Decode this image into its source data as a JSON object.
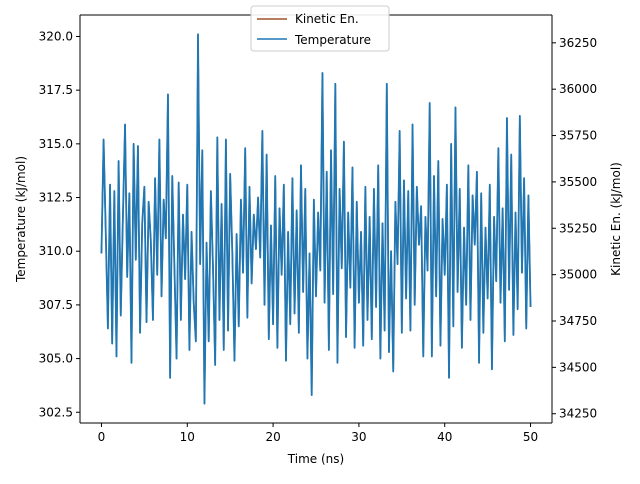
{
  "chart_data": {
    "type": "line",
    "xlabel": "Time (ns)",
    "ylabel_left": "Temperature (kJ/mol)",
    "ylabel_right": "Kinetic En. (kJ/mol)",
    "xlim": [
      -2.5,
      52.5
    ],
    "ylim_left": [
      302.0,
      321.0
    ],
    "ylim_right": [
      34200,
      36400
    ],
    "x_ticks": [
      0,
      10,
      20,
      30,
      40,
      50
    ],
    "y_ticks_left": [
      302.5,
      305.0,
      307.5,
      310.0,
      312.5,
      315.0,
      317.5,
      320.0
    ],
    "y_ticks_right": [
      34250,
      34500,
      34750,
      35000,
      35250,
      35500,
      35750,
      36000,
      36250
    ],
    "grid": false,
    "legend": {
      "location": "top-center",
      "entries": [
        "Kinetic En.",
        "Temperature"
      ]
    },
    "series": [
      {
        "name": "Kinetic En.",
        "axis": "right",
        "color": "#a0522d",
        "note_visible": "hidden beneath Temperature line"
      },
      {
        "name": "Temperature",
        "axis": "left",
        "color": "#1f77b4",
        "x": [
          0.0,
          0.25,
          0.5,
          0.75,
          1.0,
          1.25,
          1.5,
          1.75,
          2.0,
          2.25,
          2.5,
          2.75,
          3.0,
          3.25,
          3.5,
          3.75,
          4.0,
          4.25,
          4.5,
          4.75,
          5.0,
          5.25,
          5.5,
          5.75,
          6.0,
          6.25,
          6.5,
          6.75,
          7.0,
          7.25,
          7.5,
          7.75,
          8.0,
          8.25,
          8.5,
          8.75,
          9.0,
          9.25,
          9.5,
          9.75,
          10.0,
          10.25,
          10.5,
          10.75,
          11.0,
          11.25,
          11.5,
          11.75,
          12.0,
          12.25,
          12.5,
          12.75,
          13.0,
          13.25,
          13.5,
          13.75,
          14.0,
          14.25,
          14.5,
          14.75,
          15.0,
          15.25,
          15.5,
          15.75,
          16.0,
          16.25,
          16.5,
          16.75,
          17.0,
          17.25,
          17.5,
          17.75,
          18.0,
          18.25,
          18.5,
          18.75,
          19.0,
          19.25,
          19.5,
          19.75,
          20.0,
          20.25,
          20.5,
          20.75,
          21.0,
          21.25,
          21.5,
          21.75,
          22.0,
          22.25,
          22.5,
          22.75,
          23.0,
          23.25,
          23.5,
          23.75,
          24.0,
          24.25,
          24.5,
          24.75,
          25.0,
          25.25,
          25.5,
          25.75,
          26.0,
          26.25,
          26.5,
          26.75,
          27.0,
          27.25,
          27.5,
          27.75,
          28.0,
          28.25,
          28.5,
          28.75,
          29.0,
          29.25,
          29.5,
          29.75,
          30.0,
          30.25,
          30.5,
          30.75,
          31.0,
          31.25,
          31.5,
          31.75,
          32.0,
          32.25,
          32.5,
          32.75,
          33.0,
          33.25,
          33.5,
          33.75,
          34.0,
          34.25,
          34.5,
          34.75,
          35.0,
          35.25,
          35.5,
          35.75,
          36.0,
          36.25,
          36.5,
          36.75,
          37.0,
          37.25,
          37.5,
          37.75,
          38.0,
          38.25,
          38.5,
          38.75,
          39.0,
          39.25,
          39.5,
          39.75,
          40.0,
          40.25,
          40.5,
          40.75,
          41.0,
          41.25,
          41.5,
          41.75,
          42.0,
          42.25,
          42.5,
          42.75,
          43.0,
          43.25,
          43.5,
          43.75,
          44.0,
          44.25,
          44.5,
          44.75,
          45.0,
          45.25,
          45.5,
          45.75,
          46.0,
          46.25,
          46.5,
          46.75,
          47.0,
          47.25,
          47.5,
          47.75,
          48.0,
          48.25,
          48.5,
          48.75,
          49.0,
          49.25,
          49.5,
          49.75,
          50.0
        ],
        "values": [
          309.9,
          315.2,
          310.9,
          306.4,
          313.1,
          305.7,
          312.8,
          305.1,
          314.2,
          307.0,
          311.6,
          315.9,
          308.8,
          312.7,
          304.8,
          315.0,
          309.6,
          314.9,
          306.2,
          311.3,
          313.0,
          306.7,
          312.3,
          310.5,
          306.8,
          313.4,
          308.9,
          315.2,
          307.9,
          312.4,
          310.6,
          317.3,
          304.1,
          313.5,
          309.3,
          305.0,
          313.2,
          306.8,
          311.7,
          308.7,
          313.1,
          305.4,
          310.9,
          307.6,
          305.8,
          320.1,
          309.4,
          314.7,
          302.9,
          310.4,
          305.8,
          312.8,
          309.2,
          304.7,
          315.3,
          306.8,
          312.2,
          305.4,
          315.2,
          306.3,
          313.6,
          309.9,
          304.9,
          310.8,
          306.5,
          312.4,
          309.0,
          314.8,
          306.9,
          313.0,
          308.5,
          311.7,
          310.1,
          312.5,
          309.7,
          315.6,
          307.5,
          314.5,
          305.9,
          311.2,
          306.6,
          313.5,
          305.5,
          312.0,
          308.9,
          313.1,
          304.9,
          310.9,
          306.6,
          313.4,
          307.1,
          311.9,
          306.2,
          314.0,
          308.1,
          312.9,
          305.0,
          309.9,
          303.3,
          312.4,
          307.9,
          311.8,
          309.1,
          318.3,
          307.6,
          313.7,
          305.4,
          314.7,
          308.0,
          317.8,
          304.8,
          312.9,
          309.2,
          315.1,
          306.0,
          311.8,
          308.3,
          313.9,
          305.5,
          312.3,
          307.6,
          310.9,
          305.6,
          313.0,
          306.8,
          311.6,
          305.9,
          312.9,
          307.4,
          314.0,
          305.0,
          311.3,
          306.3,
          317.8,
          305.3,
          310.0,
          304.4,
          312.3,
          309.4,
          315.6,
          306.2,
          313.3,
          307.8,
          312.8,
          306.3,
          315.9,
          307.5,
          313.0,
          310.3,
          312.1,
          305.1,
          311.6,
          309.1,
          316.9,
          305.1,
          313.5,
          307.9,
          314.2,
          305.6,
          311.5,
          308.9,
          313.1,
          304.1,
          315.0,
          306.5,
          316.7,
          308.1,
          312.9,
          305.5,
          311.1,
          307.5,
          314.0,
          306.8,
          312.6,
          310.3,
          313.7,
          304.8,
          312.7,
          306.2,
          311.1,
          307.8,
          313.1,
          304.5,
          311.6,
          308.6,
          314.8,
          307.6,
          312.0,
          305.8,
          316.2,
          308.2,
          314.5,
          306.1,
          311.8,
          307.3,
          316.3,
          309.0,
          313.4,
          306.4,
          312.6,
          307.4
        ]
      }
    ]
  }
}
